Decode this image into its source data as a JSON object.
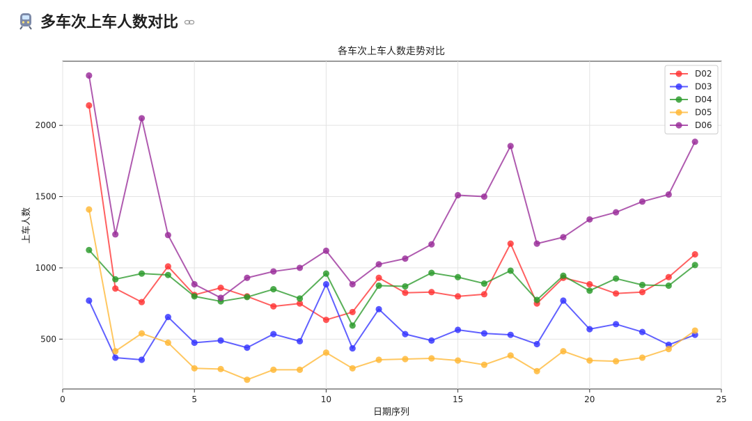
{
  "page": {
    "heading": "多车次上车人数对比"
  },
  "chart_data": {
    "type": "line",
    "title": "各车次上车人数走势对比",
    "xlabel": "日期序列",
    "ylabel": "上车人数",
    "xlim": [
      0,
      25
    ],
    "ylim": [
      150,
      2450
    ],
    "xticks": [
      0,
      5,
      10,
      15,
      20,
      25
    ],
    "yticks": [
      500,
      1000,
      1500,
      2000
    ],
    "grid": true,
    "legend_position": "top-right",
    "x": [
      1,
      2,
      3,
      4,
      5,
      6,
      7,
      8,
      9,
      10,
      11,
      12,
      13,
      14,
      15,
      16,
      17,
      18,
      19,
      20,
      21,
      22,
      23,
      24
    ],
    "series": [
      {
        "name": "D02",
        "color": "#ff3333",
        "values": [
          2140,
          855,
          760,
          1010,
          810,
          860,
          800,
          730,
          750,
          635,
          690,
          930,
          825,
          830,
          800,
          815,
          1170,
          750,
          930,
          885,
          820,
          830,
          935,
          1095
        ]
      },
      {
        "name": "D03",
        "color": "#3333ff",
        "values": [
          770,
          370,
          355,
          655,
          475,
          490,
          440,
          535,
          485,
          885,
          435,
          710,
          535,
          490,
          565,
          540,
          530,
          465,
          770,
          570,
          605,
          550,
          460,
          530
        ]
      },
      {
        "name": "D04",
        "color": "#2a9a2a",
        "values": [
          1125,
          920,
          960,
          950,
          800,
          765,
          795,
          850,
          785,
          960,
          595,
          875,
          870,
          965,
          935,
          890,
          980,
          775,
          945,
          840,
          925,
          880,
          875,
          1020
        ]
      },
      {
        "name": "D05",
        "color": "#ffb733",
        "values": [
          1410,
          415,
          540,
          475,
          295,
          290,
          215,
          285,
          285,
          405,
          295,
          355,
          360,
          365,
          350,
          320,
          385,
          275,
          415,
          350,
          345,
          370,
          430,
          560
        ]
      },
      {
        "name": "D06",
        "color": "#992b99",
        "values": [
          2350,
          1235,
          2050,
          1230,
          885,
          790,
          930,
          975,
          1000,
          1120,
          885,
          1025,
          1065,
          1165,
          1510,
          1500,
          1855,
          1170,
          1215,
          1340,
          1390,
          1465,
          1515,
          1885
        ]
      }
    ]
  }
}
